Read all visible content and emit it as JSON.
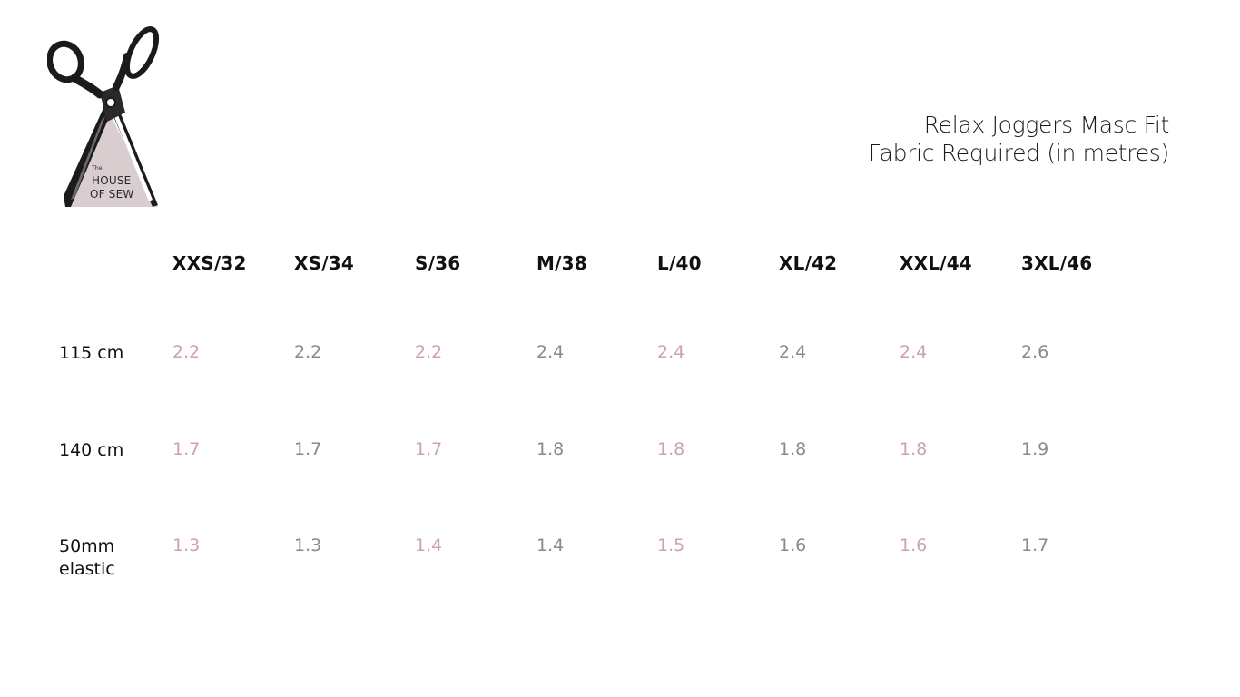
{
  "logo": {
    "small_text": "The",
    "line1": "HOUSE",
    "line2": "OF SEW"
  },
  "title": {
    "line1": "Relax Joggers Masc Fit",
    "line2": "Fabric Required (in metres)"
  },
  "colors": {
    "accent_pink": "#c9a4ab",
    "value_grey": "#8a8a8a",
    "logo_fill": "#d9cdcf"
  },
  "table": {
    "sizes": [
      "XXS/32",
      "XS/34",
      "S/36",
      "M/38",
      "L/40",
      "XL/42",
      "XXL/44",
      "3XL/46"
    ],
    "rows": [
      {
        "label": "115 cm",
        "values": [
          "2.2",
          "2.2",
          "2.2",
          "2.4",
          "2.4",
          "2.4",
          "2.4",
          "2.6"
        ]
      },
      {
        "label": "140 cm",
        "values": [
          "1.7",
          "1.7",
          "1.7",
          "1.8",
          "1.8",
          "1.8",
          "1.8",
          "1.9"
        ]
      },
      {
        "label_line1": "50mm",
        "label_line2": "elastic",
        "values": [
          "1.3",
          "1.3",
          "1.4",
          "1.4",
          "1.5",
          "1.6",
          "1.6",
          "1.7"
        ]
      }
    ]
  }
}
